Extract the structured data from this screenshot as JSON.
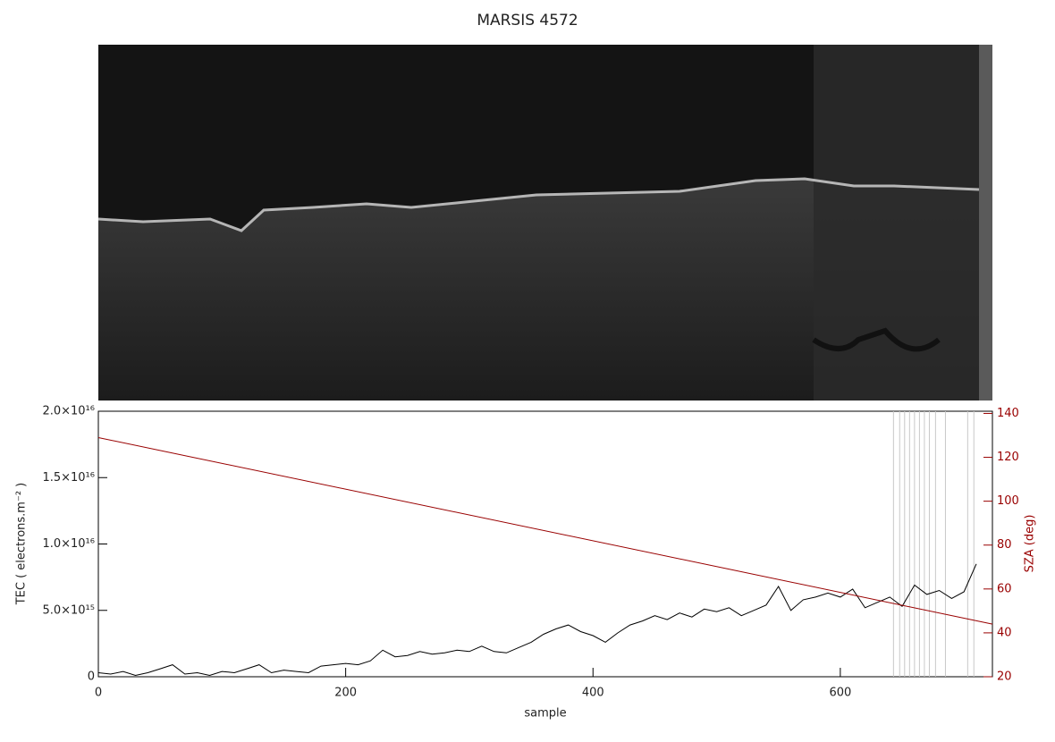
{
  "chart_data": {
    "type": "line",
    "title": "MARSIS 4572",
    "x_label": "sample",
    "y_label": "TEC ( electrons.m⁻² )",
    "y2_label": "SZA (deg)",
    "xlim": [
      0,
      723
    ],
    "xticks": [
      0,
      200,
      400,
      600
    ],
    "ylim": [
      0,
      2e+16
    ],
    "yticks": [
      0,
      {
        "value": 5000000000000000.0,
        "label": "5.0×10¹⁵"
      },
      {
        "value": 1e+16,
        "label": "1.0×10¹⁶"
      },
      {
        "value": 1.5e+16,
        "label": "1.5×10¹⁶"
      },
      {
        "value": 2e+16,
        "label": "2.0×10¹⁶"
      }
    ],
    "y2lim": [
      20,
      141
    ],
    "y2ticks": [
      20,
      40,
      60,
      80,
      100,
      120,
      140
    ],
    "y2_color": "#990000",
    "x": [
      0,
      10,
      20,
      30,
      40,
      50,
      60,
      70,
      80,
      90,
      100,
      110,
      120,
      130,
      140,
      150,
      160,
      170,
      180,
      190,
      200,
      210,
      220,
      230,
      240,
      250,
      260,
      270,
      280,
      290,
      300,
      310,
      320,
      330,
      340,
      350,
      360,
      370,
      380,
      390,
      400,
      410,
      420,
      430,
      440,
      450,
      460,
      470,
      480,
      490,
      500,
      510,
      520,
      530,
      540,
      550,
      560,
      570,
      580,
      590,
      600,
      610,
      620,
      630,
      640,
      650,
      660,
      670,
      680,
      690,
      700,
      710
    ],
    "series": [
      {
        "name": "TEC",
        "color": "#000000",
        "values": [
          300000000000000.0,
          200000000000000.0,
          400000000000000.0,
          100000000000000.0,
          300000000000000.0,
          600000000000000.0,
          900000000000000.0,
          200000000000000.0,
          300000000000000.0,
          100000000000000.0,
          400000000000000.0,
          300000000000000.0,
          600000000000000.0,
          900000000000000.0,
          300000000000000.0,
          500000000000000.0,
          400000000000000.0,
          300000000000000.0,
          800000000000000.0,
          900000000000000.0,
          1000000000000000.0,
          900000000000000.0,
          1200000000000000.0,
          2000000000000000.0,
          1500000000000000.0,
          1600000000000000.0,
          1900000000000000.0,
          1700000000000000.0,
          1800000000000000.0,
          2000000000000000.0,
          1900000000000000.0,
          2300000000000000.0,
          1900000000000000.0,
          1800000000000000.0,
          2200000000000000.0,
          2600000000000000.0,
          3200000000000000.0,
          3600000000000000.0,
          3900000000000000.0,
          3400000000000000.0,
          3100000000000000.0,
          2600000000000000.0,
          3300000000000000.0,
          3900000000000000.0,
          4200000000000000.0,
          4600000000000000.0,
          4300000000000000.0,
          4800000000000000.0,
          4500000000000000.0,
          5100000000000000.0,
          4900000000000000.0,
          5200000000000000.0,
          4600000000000000.0,
          5000000000000000.0,
          5400000000000000.0,
          6800000000000000.0,
          5000000000000000.0,
          5800000000000000.0,
          6000000000000000.0,
          6300000000000000.0,
          6000000000000000.0,
          6600000000000000.0,
          5200000000000000.0,
          5600000000000000.0,
          6000000000000000.0,
          5300000000000000.0,
          6900000000000000.0,
          6200000000000000.0,
          6500000000000000.0,
          5900000000000000.0,
          6400000000000000.0,
          8500000000000000.0
        ]
      },
      {
        "name": "SZA",
        "color": "#990000",
        "axis": "y2",
        "x": [
          0,
          723
        ],
        "values": [
          129,
          44
        ]
      }
    ],
    "vlines": [
      643,
      648,
      652,
      656,
      660,
      664,
      668,
      672,
      677,
      685,
      703,
      708
    ],
    "vline_color": "#c8c8c8"
  }
}
